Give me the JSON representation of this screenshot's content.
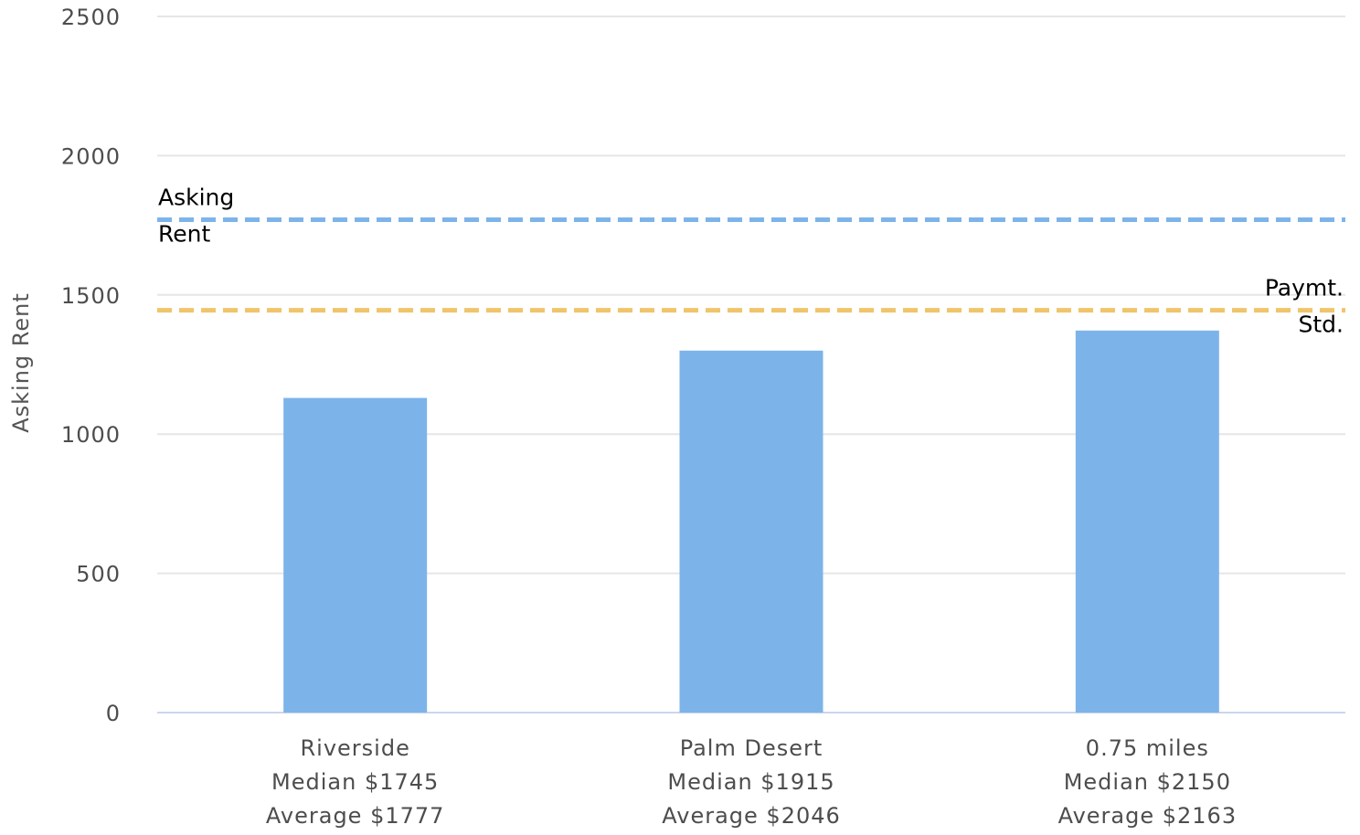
{
  "chart_data": {
    "type": "bar",
    "categories": [
      [
        "Riverside",
        "Median $1745",
        "Average $1777"
      ],
      [
        "Palm Desert",
        "Median $1915",
        "Average $2046"
      ],
      [
        "0.75 miles",
        "Median $2150",
        "Average $2163"
      ]
    ],
    "series": [
      {
        "values": [
          1130,
          1300,
          1372
        ],
        "color": "#7cb4ea"
      }
    ],
    "ylabel": "Asking Rent",
    "ylim": [
      0,
      2500
    ],
    "yticks": [
      0,
      500,
      1000,
      1500,
      2000,
      2500
    ],
    "grid": true,
    "reference_lines": [
      {
        "label": [
          "Asking",
          "Rent"
        ],
        "value": 1770,
        "color": "#7cb4ea",
        "style": "dashed",
        "label_align": "left"
      },
      {
        "label": [
          "Paymt.",
          "Std."
        ],
        "value": 1445,
        "color": "#f0c46a",
        "style": "dashed",
        "label_align": "right"
      }
    ]
  }
}
